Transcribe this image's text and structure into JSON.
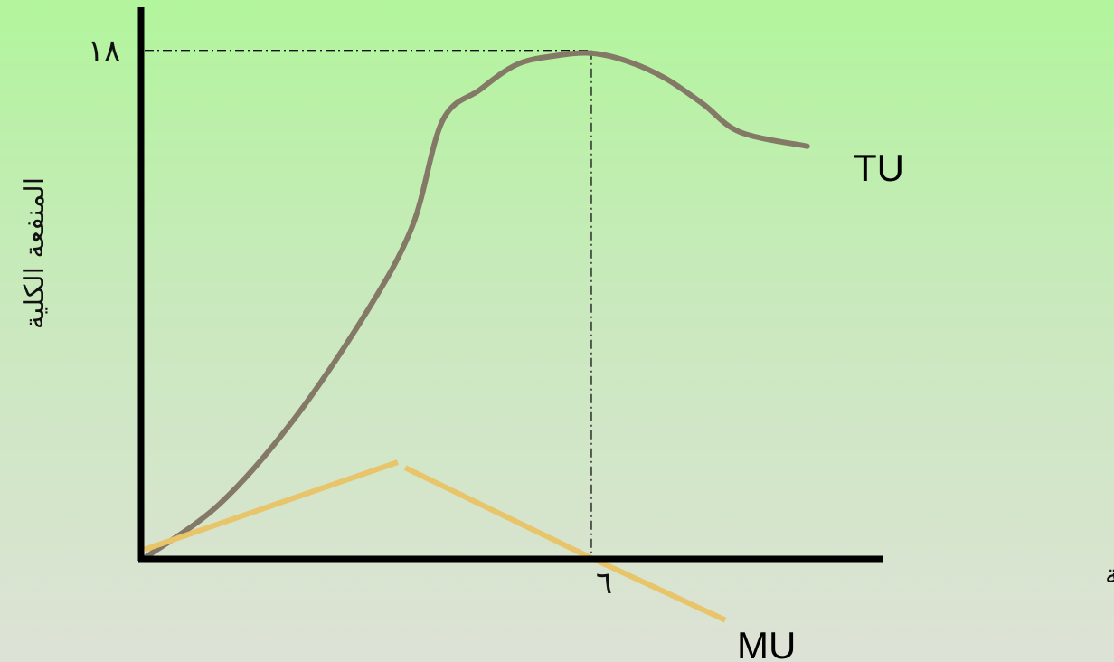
{
  "chart_data": {
    "type": "line",
    "ylabel": "المنفعة الكلية",
    "xlabel": "الكمية",
    "y_tick_label": "١٨",
    "x_tick_label": "٦",
    "y_tick_value": 18,
    "x_tick_value": 6,
    "xlim": [
      0,
      9.96
    ],
    "ylim": [
      0,
      18.6
    ],
    "series": [
      {
        "name": "TU",
        "color": "#847966",
        "x": [
          0,
          1,
          2,
          3,
          3.6,
          4,
          4.5,
          5,
          5.5,
          6,
          6.5,
          7,
          7.5,
          8,
          8.9
        ],
        "y": [
          0,
          1.9,
          4.9,
          8.8,
          11.8,
          15.5,
          16.6,
          17.5,
          17.8,
          17.9,
          17.6,
          17,
          16.1,
          15.1,
          14.6
        ]
      },
      {
        "name": "MU",
        "color": "#e8c46a",
        "x": [
          0,
          3.4,
          3.5,
          6,
          7.8
        ],
        "y": [
          0.3,
          3.4,
          3.2,
          0,
          -2.2
        ]
      }
    ],
    "guides": {
      "style": "dash-dot",
      "horizontal_at_y": 18,
      "vertical_at_x": 6
    },
    "grid": false,
    "legend": "labels-at-line-ends"
  }
}
